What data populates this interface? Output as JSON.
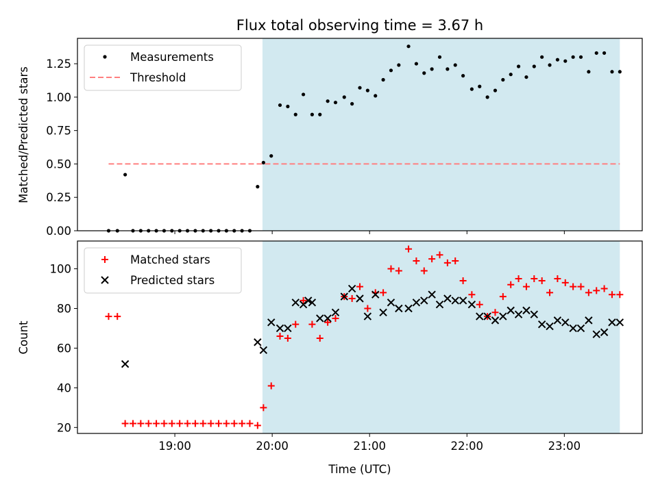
{
  "figure": {
    "title": "Flux total observing time = 3.67 h",
    "xlabel": "Time (UTC)"
  },
  "chart_data": [
    {
      "type": "scatter",
      "panel": "top",
      "title": "Flux total observing time = 3.67 h",
      "ylabel": "Matched/Predicted stars",
      "xlabel": "",
      "x_unit": "hours UTC",
      "xlim": [
        18.0,
        23.8
      ],
      "ylim": [
        0.0,
        1.44
      ],
      "yticks": [
        0.0,
        0.25,
        0.5,
        0.75,
        1.0,
        1.25
      ],
      "ytick_labels": [
        "0.00",
        "0.25",
        "0.50",
        "0.75",
        "1.00",
        "1.25"
      ],
      "xticks": [
        19,
        20,
        21,
        22,
        23
      ],
      "xtick_labels": [
        "",
        "",
        "",
        "",
        ""
      ],
      "grid": false,
      "legend": "top-left",
      "shaded_region": {
        "x_start": 19.9,
        "x_end": 23.57,
        "color": "#d2e9f0"
      },
      "series": [
        {
          "name": "Measurements",
          "marker": "dot",
          "color": "#000000",
          "x": [
            18.32,
            18.41,
            18.49,
            18.57,
            18.65,
            18.73,
            18.81,
            18.89,
            18.97,
            19.05,
            19.13,
            19.21,
            19.29,
            19.37,
            19.45,
            19.53,
            19.61,
            19.69,
            19.77,
            19.85,
            19.91,
            19.99,
            20.08,
            20.16,
            20.24,
            20.32,
            20.41,
            20.49,
            20.57,
            20.65,
            20.74,
            20.82,
            20.9,
            20.98,
            21.06,
            21.14,
            21.22,
            21.3,
            21.4,
            21.48,
            21.56,
            21.64,
            21.72,
            21.8,
            21.88,
            21.96,
            22.05,
            22.13,
            22.21,
            22.29,
            22.37,
            22.45,
            22.53,
            22.61,
            22.69,
            22.77,
            22.85,
            22.93,
            23.01,
            23.09,
            23.17,
            23.25,
            23.33,
            23.41,
            23.49,
            23.57
          ],
          "y": [
            0.0,
            0.0,
            0.42,
            0.0,
            0.0,
            0.0,
            0.0,
            0.0,
            0.0,
            0.0,
            0.0,
            0.0,
            0.0,
            0.0,
            0.0,
            0.0,
            0.0,
            0.0,
            0.0,
            0.33,
            0.51,
            0.56,
            0.94,
            0.93,
            0.87,
            1.02,
            0.87,
            0.87,
            0.97,
            0.96,
            1.0,
            0.95,
            1.07,
            1.05,
            1.01,
            1.13,
            1.2,
            1.24,
            1.38,
            1.25,
            1.18,
            1.21,
            1.3,
            1.21,
            1.24,
            1.16,
            1.06,
            1.08,
            1.0,
            1.05,
            1.13,
            1.17,
            1.23,
            1.15,
            1.23,
            1.3,
            1.24,
            1.28,
            1.27,
            1.3,
            1.3,
            1.19,
            1.33,
            1.33,
            1.19,
            1.19
          ]
        },
        {
          "name": "Threshold",
          "marker": "dashed-line",
          "color": "#ff7f7f",
          "x": [
            18.32,
            23.57
          ],
          "y": [
            0.5,
            0.5
          ]
        }
      ]
    },
    {
      "type": "scatter",
      "panel": "bottom",
      "title": "",
      "ylabel": "Count",
      "xlabel": "Time (UTC)",
      "x_unit": "hours UTC",
      "xlim": [
        18.0,
        23.8
      ],
      "ylim": [
        17,
        114
      ],
      "yticks": [
        20,
        40,
        60,
        80,
        100
      ],
      "ytick_labels": [
        "20",
        "40",
        "60",
        "80",
        "100"
      ],
      "xticks": [
        19,
        20,
        21,
        22,
        23
      ],
      "xtick_labels": [
        "19:00",
        "20:00",
        "21:00",
        "22:00",
        "23:00"
      ],
      "grid": false,
      "legend": "top-left",
      "shaded_region": {
        "x_start": 19.9,
        "x_end": 23.57,
        "color": "#d2e9f0"
      },
      "series": [
        {
          "name": "Matched stars",
          "marker": "plus",
          "color": "#ff0000",
          "x": [
            18.32,
            18.41,
            18.49,
            18.57,
            18.65,
            18.73,
            18.81,
            18.89,
            18.97,
            19.05,
            19.13,
            19.21,
            19.29,
            19.37,
            19.45,
            19.53,
            19.61,
            19.69,
            19.77,
            19.85,
            19.91,
            19.99,
            20.08,
            20.16,
            20.24,
            20.32,
            20.41,
            20.49,
            20.57,
            20.65,
            20.74,
            20.82,
            20.9,
            20.98,
            21.06,
            21.14,
            21.22,
            21.3,
            21.4,
            21.48,
            21.56,
            21.64,
            21.72,
            21.8,
            21.88,
            21.96,
            22.05,
            22.13,
            22.21,
            22.29,
            22.37,
            22.45,
            22.53,
            22.61,
            22.69,
            22.77,
            22.85,
            22.93,
            23.01,
            23.09,
            23.17,
            23.25,
            23.33,
            23.41,
            23.49,
            23.57
          ],
          "y": [
            76,
            76,
            22,
            22,
            22,
            22,
            22,
            22,
            22,
            22,
            22,
            22,
            22,
            22,
            22,
            22,
            22,
            22,
            22,
            21,
            30,
            41,
            66,
            65,
            72,
            84,
            72,
            65,
            73,
            75,
            86,
            85,
            91,
            80,
            88,
            88,
            100,
            99,
            110,
            104,
            99,
            105,
            107,
            103,
            104,
            94,
            87,
            82,
            76,
            78,
            86,
            92,
            95,
            91,
            95,
            94,
            88,
            95,
            93,
            91,
            91,
            88,
            89,
            90,
            87,
            87
          ]
        },
        {
          "name": "Predicted stars",
          "marker": "x",
          "color": "#000000",
          "x": [
            18.49,
            19.85,
            19.91,
            19.99,
            20.08,
            20.16,
            20.24,
            20.32,
            20.37,
            20.41,
            20.49,
            20.57,
            20.65,
            20.74,
            20.82,
            20.9,
            20.98,
            21.06,
            21.14,
            21.22,
            21.3,
            21.4,
            21.48,
            21.56,
            21.64,
            21.72,
            21.8,
            21.88,
            21.96,
            22.05,
            22.13,
            22.21,
            22.29,
            22.37,
            22.45,
            22.53,
            22.61,
            22.69,
            22.77,
            22.85,
            22.93,
            23.01,
            23.09,
            23.17,
            23.25,
            23.33,
            23.41,
            23.49,
            23.57
          ],
          "y": [
            52,
            63,
            59,
            73,
            70,
            70,
            83,
            82,
            84,
            83,
            75,
            75,
            78,
            86,
            90,
            85,
            76,
            87,
            78,
            83,
            80,
            80,
            83,
            84,
            87,
            82,
            85,
            84,
            84,
            82,
            76,
            76,
            74,
            76,
            79,
            77,
            79,
            77,
            72,
            71,
            74,
            73,
            70,
            70,
            74,
            67,
            68,
            73,
            73
          ]
        }
      ]
    }
  ]
}
